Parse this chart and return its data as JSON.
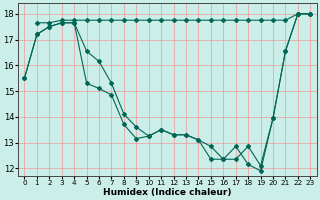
{
  "xlabel": "Humidex (Indice chaleur)",
  "bg_color": "#cceee8",
  "line_color": "#006655",
  "grid_color": "#ee9999",
  "xlim": [
    -0.5,
    23.5
  ],
  "ylim": [
    11.7,
    18.4
  ],
  "yticks": [
    12,
    13,
    14,
    15,
    16,
    17,
    18
  ],
  "xticks": [
    0,
    1,
    2,
    3,
    4,
    5,
    6,
    7,
    8,
    9,
    10,
    11,
    12,
    13,
    14,
    15,
    16,
    17,
    18,
    19,
    20,
    21,
    22,
    23
  ],
  "line1_x": [
    0,
    1,
    2,
    3,
    4,
    5,
    6,
    7,
    8,
    9,
    10,
    11,
    12,
    13,
    14,
    15,
    16,
    17,
    18,
    19,
    20,
    21,
    22,
    23
  ],
  "line1_y": [
    15.5,
    17.2,
    17.5,
    17.65,
    17.65,
    16.55,
    16.15,
    15.3,
    14.1,
    13.6,
    13.25,
    13.5,
    13.3,
    13.3,
    13.1,
    12.85,
    12.35,
    12.35,
    12.85,
    12.1,
    13.95,
    16.55,
    18.0,
    18.0
  ],
  "line2_x": [
    1,
    2,
    3,
    4,
    5,
    6,
    7,
    8,
    9,
    10,
    11,
    12,
    13,
    14,
    15,
    16,
    17,
    18,
    19,
    20,
    21,
    22,
    23
  ],
  "line2_y": [
    17.65,
    17.65,
    17.75,
    17.75,
    17.75,
    17.75,
    17.75,
    17.75,
    17.75,
    17.75,
    17.75,
    17.75,
    17.75,
    17.75,
    17.75,
    17.75,
    17.75,
    17.75,
    17.75,
    17.75,
    17.75,
    18.0,
    18.0
  ],
  "line3_x": [
    0,
    1,
    2,
    3,
    4,
    5,
    6,
    7,
    8,
    9,
    10,
    11,
    12,
    13,
    14,
    15,
    16,
    17,
    18,
    19,
    20,
    21,
    22,
    23
  ],
  "line3_y": [
    15.5,
    17.2,
    17.5,
    17.65,
    17.65,
    15.3,
    15.1,
    14.85,
    13.7,
    13.15,
    13.25,
    13.5,
    13.3,
    13.3,
    13.1,
    12.35,
    12.35,
    12.85,
    12.15,
    11.9,
    13.95,
    16.55,
    18.0,
    18.0
  ]
}
